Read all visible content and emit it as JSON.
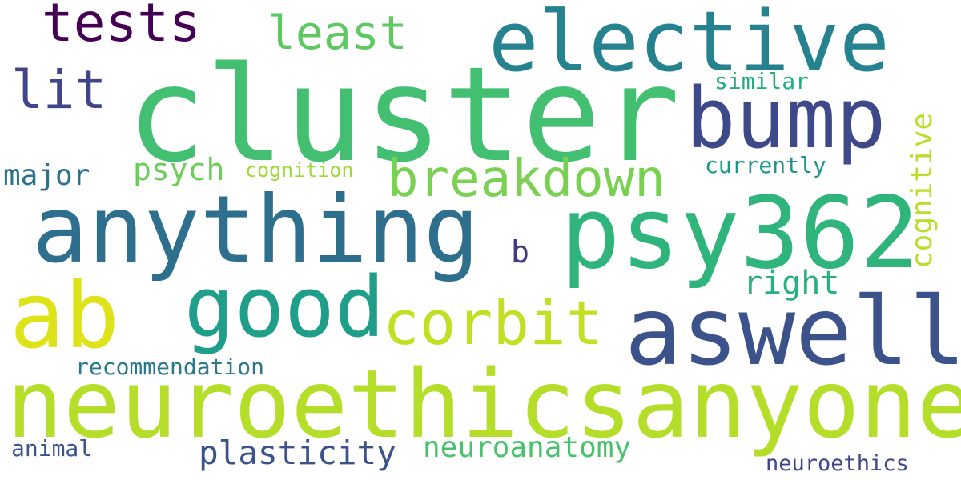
{
  "words": [
    {
      "id": "cluster",
      "text": "cluster",
      "color": "#43bf71"
    },
    {
      "id": "neuroethicsanyone",
      "text": "neuroethicsanyone",
      "color": "#b5de2b"
    },
    {
      "id": "anything",
      "text": "anything",
      "color": "#2e6f8e"
    },
    {
      "id": "psy362",
      "text": "psy362",
      "color": "#2fb47c"
    },
    {
      "id": "elective",
      "text": "elective",
      "color": "#26828e"
    },
    {
      "id": "aswell",
      "text": "aswell",
      "color": "#3b528b"
    },
    {
      "id": "bump",
      "text": "bump",
      "color": "#3e4989"
    },
    {
      "id": "good",
      "text": "good",
      "color": "#1f9e89"
    },
    {
      "id": "ab",
      "text": "ab",
      "color": "#dde318"
    },
    {
      "id": "corbit",
      "text": "corbit",
      "color": "#c2df23"
    },
    {
      "id": "breakdown",
      "text": "breakdown",
      "color": "#7ad151"
    },
    {
      "id": "tests",
      "text": "tests",
      "color": "#440154"
    },
    {
      "id": "least",
      "text": "least",
      "color": "#5ec962"
    },
    {
      "id": "lit",
      "text": "lit",
      "color": "#414487"
    },
    {
      "id": "plasticity",
      "text": "plasticity",
      "color": "#3b528b"
    },
    {
      "id": "neuroanatomy",
      "text": "neuroanatomy",
      "color": "#4ac16d"
    },
    {
      "id": "cognitive",
      "text": "cognitive",
      "color": "#b8de29"
    },
    {
      "id": "psych",
      "text": "psych",
      "color": "#6ccd5a"
    },
    {
      "id": "major",
      "text": "major",
      "color": "#2c728e"
    },
    {
      "id": "right",
      "text": "right",
      "color": "#2ab07f"
    },
    {
      "id": "recommendation",
      "text": "recommendation",
      "color": "#2a788e"
    },
    {
      "id": "currently",
      "text": "currently",
      "color": "#1f968b"
    },
    {
      "id": "similar",
      "text": "similar",
      "color": "#25ab82"
    },
    {
      "id": "cognition",
      "text": "cognition",
      "color": "#a0da39"
    },
    {
      "id": "animal",
      "text": "animal",
      "color": "#39558c"
    },
    {
      "id": "neuroethics",
      "text": "neuroethics",
      "color": "#3f4788"
    },
    {
      "id": "b",
      "text": "b",
      "color": "#453781"
    }
  ]
}
